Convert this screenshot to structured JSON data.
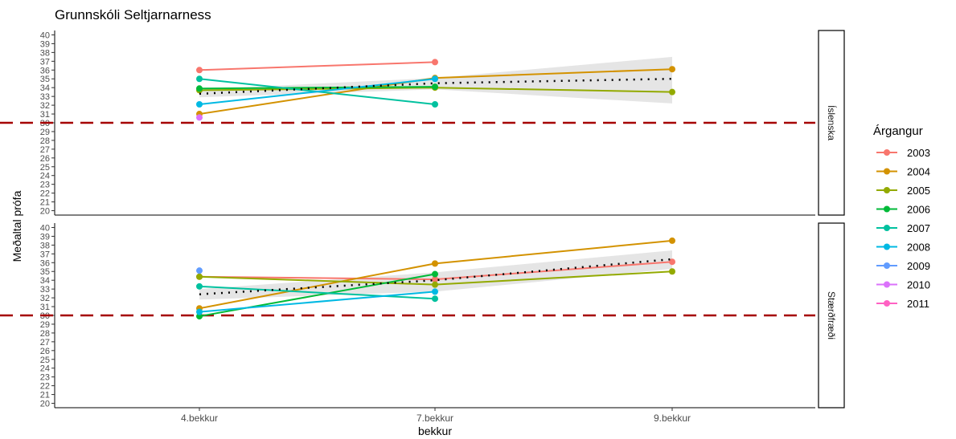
{
  "chart_data": {
    "type": "line",
    "title": "Grunnskóli Seltjarnarness",
    "xlabel": "bekkur",
    "ylabel": "Meðaltal prófa",
    "categories": [
      "4.bekkur",
      "7.bekkur",
      "9.bekkur"
    ],
    "ylim": [
      19.5,
      40.5
    ],
    "yticks": [
      20,
      21,
      22,
      23,
      24,
      25,
      26,
      27,
      28,
      29,
      30,
      31,
      32,
      33,
      34,
      35,
      36,
      37,
      38,
      39,
      40
    ],
    "reference_line": 30,
    "legend": {
      "title": "Árgangur",
      "position": "right"
    },
    "colors": {
      "2003": "#F8766D",
      "2004": "#D39200",
      "2005": "#93AA00",
      "2006": "#00BA38",
      "2007": "#00C19F",
      "2008": "#00B9E3",
      "2009": "#619CFF",
      "2010": "#DB72FB",
      "2011": "#FF61C3"
    },
    "series_names": [
      "2003",
      "2004",
      "2005",
      "2006",
      "2007",
      "2008",
      "2009",
      "2010",
      "2011"
    ],
    "panels": [
      {
        "name": "Íslenska",
        "series": [
          {
            "name": "2003",
            "values": [
              36.0,
              36.9,
              null
            ]
          },
          {
            "name": "2004",
            "values": [
              31.0,
              35.1,
              36.1
            ]
          },
          {
            "name": "2005",
            "values": [
              33.7,
              34.0,
              33.5
            ]
          },
          {
            "name": "2006",
            "values": [
              33.9,
              34.1,
              null
            ]
          },
          {
            "name": "2007",
            "values": [
              35.0,
              32.1,
              null
            ]
          },
          {
            "name": "2008",
            "values": [
              32.1,
              35.0,
              null
            ]
          },
          {
            "name": "2009",
            "values": [
              null,
              null,
              null
            ]
          },
          {
            "name": "2010",
            "values": [
              30.6,
              null,
              null
            ]
          },
          {
            "name": "2011",
            "values": [
              null,
              null,
              null
            ]
          }
        ],
        "trend": [
          33.3,
          34.5,
          35.0
        ],
        "band_low": [
          32.9,
          33.8,
          32.2
        ],
        "band_high": [
          33.8,
          35.1,
          37.5
        ]
      },
      {
        "name": "Stærðfræði",
        "series": [
          {
            "name": "2003",
            "values": [
              34.4,
              34.1,
              36.1
            ]
          },
          {
            "name": "2004",
            "values": [
              30.8,
              35.9,
              38.5
            ]
          },
          {
            "name": "2005",
            "values": [
              34.4,
              33.5,
              35.0
            ]
          },
          {
            "name": "2006",
            "values": [
              29.9,
              34.7,
              null
            ]
          },
          {
            "name": "2007",
            "values": [
              33.3,
              31.9,
              null
            ]
          },
          {
            "name": "2008",
            "values": [
              30.4,
              32.7,
              null
            ]
          },
          {
            "name": "2009",
            "values": [
              35.1,
              null,
              null
            ]
          },
          {
            "name": "2010",
            "values": [
              null,
              null,
              null
            ]
          },
          {
            "name": "2011",
            "values": [
              null,
              null,
              null
            ]
          }
        ],
        "trend": [
          32.4,
          34.0,
          36.4
        ],
        "band_low": [
          31.8,
          32.7,
          35.3
        ],
        "band_high": [
          33.0,
          34.9,
          37.4
        ]
      }
    ]
  }
}
